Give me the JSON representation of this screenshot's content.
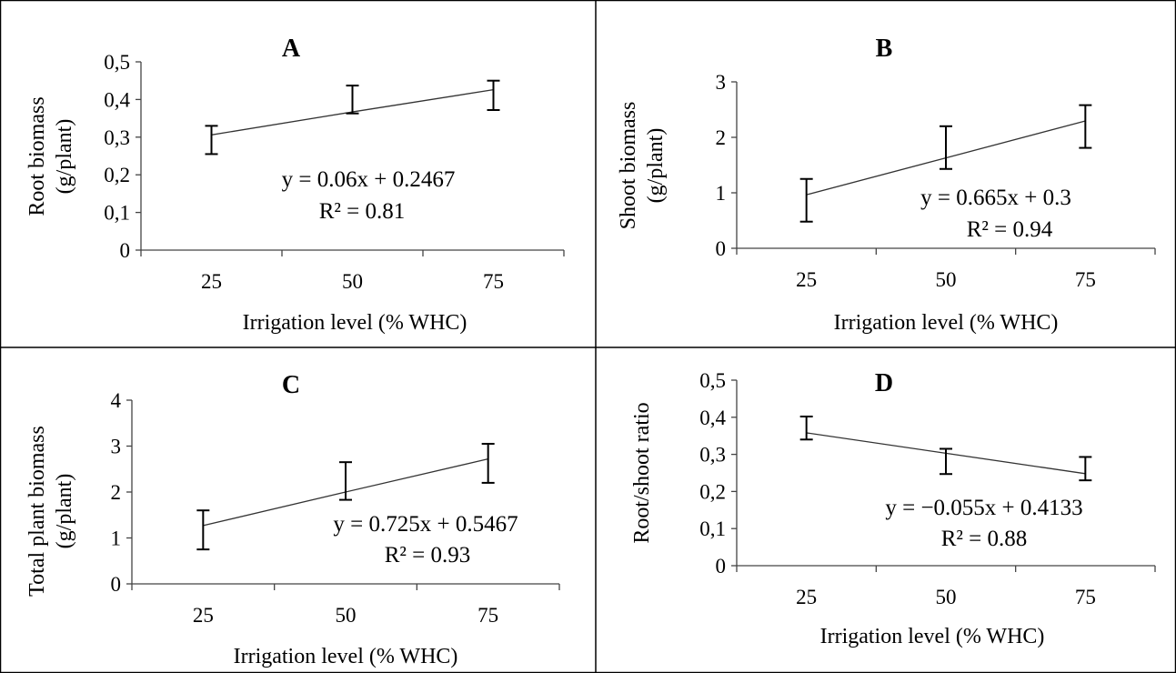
{
  "figure": {
    "panels": [
      {
        "title": "A",
        "xlabel": "Irrigation level (% WHC)",
        "ylabel_lines": [
          "Root biomass",
          "(g/plant)"
        ],
        "equation": "y = 0.06x + 0.2467",
        "r2": "R² = 0.81"
      },
      {
        "title": "B",
        "xlabel": "Irrigation level (% WHC)",
        "ylabel_lines": [
          "Shoot biomass",
          "(g/plant)"
        ],
        "equation": "y = 0.665x + 0.3",
        "r2": "R² = 0.94"
      },
      {
        "title": "C",
        "xlabel": "Irrigation level (% WHC)",
        "ylabel_lines": [
          "Total plant biomass",
          "(g/plant)"
        ],
        "equation": "y = 0.725x + 0.5467",
        "r2": "R² = 0.93"
      },
      {
        "title": "D",
        "xlabel": "Irrigation level (% WHC)",
        "ylabel_lines": [
          "Root/shoot ratio"
        ],
        "equation": "y = −0.055x + 0.4133",
        "r2": "R² = 0.88"
      }
    ]
  },
  "chart_data": [
    {
      "type": "line",
      "title": "A",
      "x": [
        "25",
        "50",
        "75"
      ],
      "y": [
        0.306,
        0.367,
        0.426
      ],
      "err_low": [
        0.255,
        0.363,
        0.372
      ],
      "err_high": [
        0.33,
        0.437,
        0.45
      ],
      "ylim": [
        0,
        0.5
      ],
      "yticks": [
        "0",
        "0,1",
        "0,2",
        "0,3",
        "0,4",
        "0,5"
      ],
      "xlabel": "Irrigation level (% WHC)",
      "ylabel": "Root biomass (g/plant)",
      "trendline": "y = 0.06x + 0.2467",
      "r2": 0.81
    },
    {
      "type": "line",
      "title": "B",
      "x": [
        "25",
        "50",
        "75"
      ],
      "y": [
        0.965,
        1.63,
        2.295
      ],
      "err_low": [
        0.48,
        1.43,
        1.81
      ],
      "err_high": [
        1.25,
        2.2,
        2.58
      ],
      "ylim": [
        0,
        3
      ],
      "yticks": [
        "0",
        "1",
        "2",
        "3"
      ],
      "xlabel": "Irrigation level (% WHC)",
      "ylabel": "Shoot biomass (g/plant)",
      "trendline": "y = 0.665x + 0.3",
      "r2": 0.94
    },
    {
      "type": "line",
      "title": "C",
      "x": [
        "25",
        "50",
        "75"
      ],
      "y": [
        1.27,
        2.0,
        2.72
      ],
      "err_low": [
        0.75,
        1.83,
        2.2
      ],
      "err_high": [
        1.6,
        2.65,
        3.05
      ],
      "ylim": [
        0,
        4
      ],
      "yticks": [
        "0",
        "1",
        "2",
        "3",
        "4"
      ],
      "xlabel": "Irrigation level (% WHC)",
      "ylabel": "Total plant biomass (g/plant)",
      "trendline": "y = 0.725x + 0.5467",
      "r2": 0.93
    },
    {
      "type": "line",
      "title": "D",
      "x": [
        "25",
        "50",
        "75"
      ],
      "y": [
        0.358,
        0.303,
        0.248
      ],
      "err_low": [
        0.34,
        0.247,
        0.23
      ],
      "err_high": [
        0.402,
        0.315,
        0.293
      ],
      "ylim": [
        0,
        0.5
      ],
      "yticks": [
        "0",
        "0,1",
        "0,2",
        "0,3",
        "0,4",
        "0,5"
      ],
      "xlabel": "Irrigation level (% WHC)",
      "ylabel": "Root/shoot ratio",
      "trendline": "y = −0.055x + 0.4133",
      "r2": 0.88
    }
  ]
}
